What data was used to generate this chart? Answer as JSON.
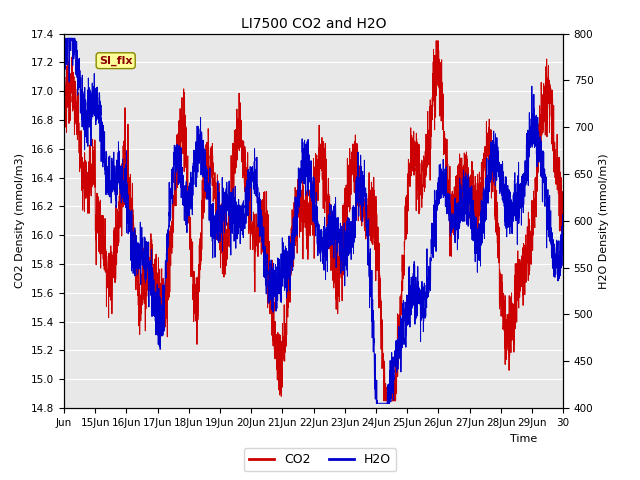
{
  "title": "LI7500 CO2 and H2O",
  "xlabel": "Time",
  "ylabel_left": "CO2 Density (mmol/m3)",
  "ylabel_right": "H2O Density (mmol/m3)",
  "co2_color": "#cc0000",
  "h2o_color": "#0000cc",
  "ylim_left": [
    14.8,
    17.4
  ],
  "ylim_right": [
    400,
    800
  ],
  "fig_bg_color": "#ffffff",
  "plot_bg_color": "#e8e8e8",
  "annotation_text": "SI_flx",
  "legend_co2": "CO2",
  "legend_h2o": "H2O",
  "grid_color": "#ffffff",
  "title_fontsize": 10,
  "axis_fontsize": 8,
  "tick_fontsize": 7.5
}
